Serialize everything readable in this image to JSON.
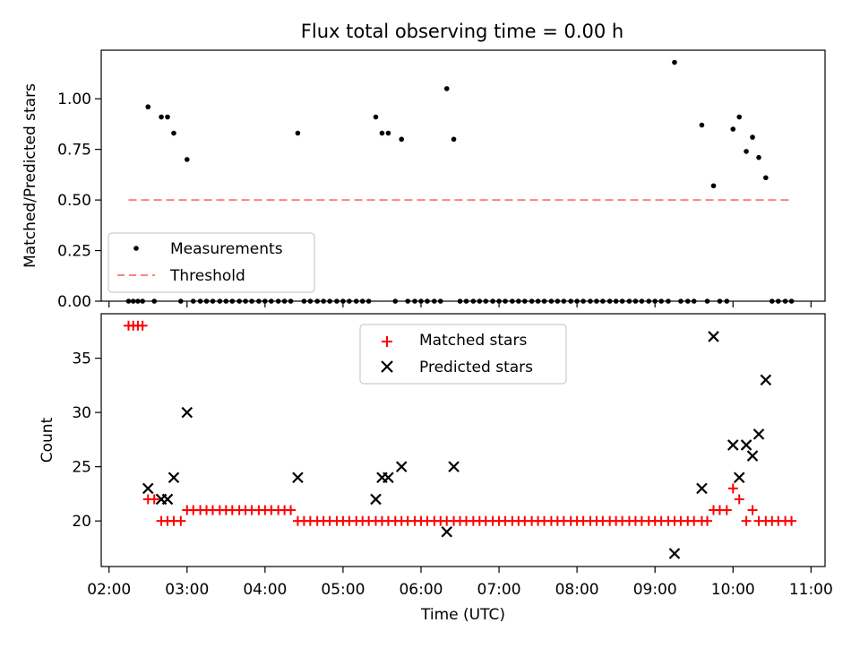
{
  "chart_data": [
    {
      "type": "scatter",
      "title": "Flux total observing time = 0.00 h",
      "xlabel": "",
      "ylabel": "Matched/Predicted stars",
      "ylim": [
        0,
        1.24
      ],
      "xlim": [
        1.9,
        11.18
      ],
      "x_unit": "hours UTC",
      "yticks": [
        0,
        0.25,
        0.5,
        0.75,
        1.0
      ],
      "ytick_labels": [
        "0.00",
        "0.25",
        "0.50",
        "0.75",
        "1.00"
      ],
      "grid": false,
      "legend_position": "lower-left",
      "series": [
        {
          "name": "Measurements",
          "marker": "dot",
          "color": "#000000",
          "x": [
            2.25,
            2.31,
            2.37,
            2.43,
            2.5,
            2.58,
            2.67,
            2.75,
            2.83,
            2.92,
            3.0,
            3.08,
            3.17,
            3.25,
            3.33,
            3.42,
            3.5,
            3.58,
            3.67,
            3.75,
            3.83,
            3.92,
            4.0,
            4.08,
            4.17,
            4.25,
            4.33,
            4.42,
            4.5,
            4.58,
            4.67,
            4.75,
            4.83,
            4.92,
            5.0,
            5.08,
            5.17,
            5.25,
            5.33,
            5.42,
            5.5,
            5.58,
            5.67,
            5.75,
            5.83,
            5.92,
            6.0,
            6.08,
            6.17,
            6.25,
            6.33,
            6.42,
            6.5,
            6.58,
            6.67,
            6.75,
            6.83,
            6.92,
            7.0,
            7.08,
            7.17,
            7.25,
            7.33,
            7.42,
            7.5,
            7.58,
            7.67,
            7.75,
            7.83,
            7.92,
            8.0,
            8.08,
            8.17,
            8.25,
            8.33,
            8.42,
            8.5,
            8.58,
            8.67,
            8.75,
            8.83,
            8.92,
            9.0,
            9.08,
            9.17,
            9.25,
            9.33,
            9.42,
            9.5,
            9.6,
            9.67,
            9.75,
            9.83,
            9.92,
            10.0,
            10.08,
            10.17,
            10.25,
            10.33,
            10.42,
            10.5,
            10.58,
            10.67,
            10.75
          ],
          "y": [
            0,
            0,
            0,
            0,
            0.96,
            0,
            0.91,
            0.91,
            0.83,
            0,
            0.7,
            0,
            0,
            0,
            0,
            0,
            0,
            0,
            0,
            0,
            0,
            0,
            0,
            0,
            0,
            0,
            0,
            0.83,
            0,
            0,
            0,
            0,
            0,
            0,
            0,
            0,
            0,
            0,
            0,
            0.91,
            0.83,
            0.83,
            0,
            0.8,
            0,
            0,
            0,
            0,
            0,
            0,
            1.05,
            0.8,
            0,
            0,
            0,
            0,
            0,
            0,
            0,
            0,
            0,
            0,
            0,
            0,
            0,
            0,
            0,
            0,
            0,
            0,
            0,
            0,
            0,
            0,
            0,
            0,
            0,
            0,
            0,
            0,
            0,
            0,
            0,
            0,
            0,
            1.18,
            0,
            0,
            0,
            0.87,
            0,
            0.57,
            0,
            0,
            0.85,
            0.91,
            0.74,
            0.81,
            0.71,
            0.61,
            0,
            0,
            0,
            0
          ]
        },
        {
          "name": "Threshold",
          "style": "dashed",
          "color": "#ff8080",
          "x": [
            2.25,
            10.75
          ],
          "y": [
            0.5,
            0.5
          ]
        }
      ]
    },
    {
      "type": "scatter",
      "title": "",
      "xlabel": "Time (UTC)",
      "ylabel": "Count",
      "ylim": [
        15.8,
        39.1
      ],
      "xlim": [
        1.9,
        11.18
      ],
      "x_unit": "hours UTC",
      "yticks": [
        20,
        25,
        30,
        35
      ],
      "ytick_labels": [
        "20",
        "25",
        "30",
        "35"
      ],
      "xticks": [
        2,
        3,
        4,
        5,
        6,
        7,
        8,
        9,
        10,
        11
      ],
      "xtick_labels": [
        "02:00",
        "03:00",
        "04:00",
        "05:00",
        "06:00",
        "07:00",
        "08:00",
        "09:00",
        "10:00",
        "11:00"
      ],
      "grid": false,
      "legend_position": "upper-center",
      "series": [
        {
          "name": "Matched stars",
          "marker": "plus",
          "color": "#ff0000",
          "x": [
            2.25,
            2.31,
            2.37,
            2.43,
            2.5,
            2.58,
            2.67,
            2.75,
            2.83,
            2.92,
            3.0,
            3.08,
            3.17,
            3.25,
            3.33,
            3.42,
            3.5,
            3.58,
            3.67,
            3.75,
            3.83,
            3.92,
            4.0,
            4.08,
            4.17,
            4.25,
            4.33,
            4.42,
            4.5,
            4.58,
            4.67,
            4.75,
            4.83,
            4.92,
            5.0,
            5.08,
            5.17,
            5.25,
            5.33,
            5.42,
            5.5,
            5.58,
            5.67,
            5.75,
            5.83,
            5.92,
            6.0,
            6.08,
            6.17,
            6.25,
            6.33,
            6.42,
            6.5,
            6.58,
            6.67,
            6.75,
            6.83,
            6.92,
            7.0,
            7.08,
            7.17,
            7.25,
            7.33,
            7.42,
            7.5,
            7.58,
            7.67,
            7.75,
            7.83,
            7.92,
            8.0,
            8.08,
            8.17,
            8.25,
            8.33,
            8.42,
            8.5,
            8.58,
            8.67,
            8.75,
            8.83,
            8.92,
            9.0,
            9.08,
            9.17,
            9.25,
            9.33,
            9.42,
            9.5,
            9.6,
            9.67,
            9.75,
            9.83,
            9.92,
            10.0,
            10.08,
            10.17,
            10.25,
            10.33,
            10.42,
            10.5,
            10.58,
            10.67,
            10.75
          ],
          "y": [
            38,
            38,
            38,
            38,
            22,
            22,
            20,
            20,
            20,
            20,
            21,
            21,
            21,
            21,
            21,
            21,
            21,
            21,
            21,
            21,
            21,
            21,
            21,
            21,
            21,
            21,
            21,
            20,
            20,
            20,
            20,
            20,
            20,
            20,
            20,
            20,
            20,
            20,
            20,
            20,
            20,
            20,
            20,
            20,
            20,
            20,
            20,
            20,
            20,
            20,
            20,
            20,
            20,
            20,
            20,
            20,
            20,
            20,
            20,
            20,
            20,
            20,
            20,
            20,
            20,
            20,
            20,
            20,
            20,
            20,
            20,
            20,
            20,
            20,
            20,
            20,
            20,
            20,
            20,
            20,
            20,
            20,
            20,
            20,
            20,
            20,
            20,
            20,
            20,
            20,
            20,
            21,
            21,
            21,
            23,
            22,
            20,
            21,
            20,
            20,
            20,
            20,
            20,
            20
          ]
        },
        {
          "name": "Predicted stars",
          "marker": "x",
          "color": "#000000",
          "x": [
            2.5,
            2.67,
            2.75,
            2.83,
            3.0,
            4.42,
            5.42,
            5.5,
            5.58,
            5.75,
            6.33,
            6.42,
            9.25,
            9.6,
            9.75,
            10.0,
            10.08,
            10.17,
            10.25,
            10.33,
            10.42
          ],
          "y": [
            23,
            22,
            22,
            24,
            30,
            24,
            22,
            24,
            24,
            25,
            19,
            25,
            17,
            23,
            37,
            27,
            24,
            27,
            26,
            28,
            33
          ]
        }
      ]
    }
  ]
}
